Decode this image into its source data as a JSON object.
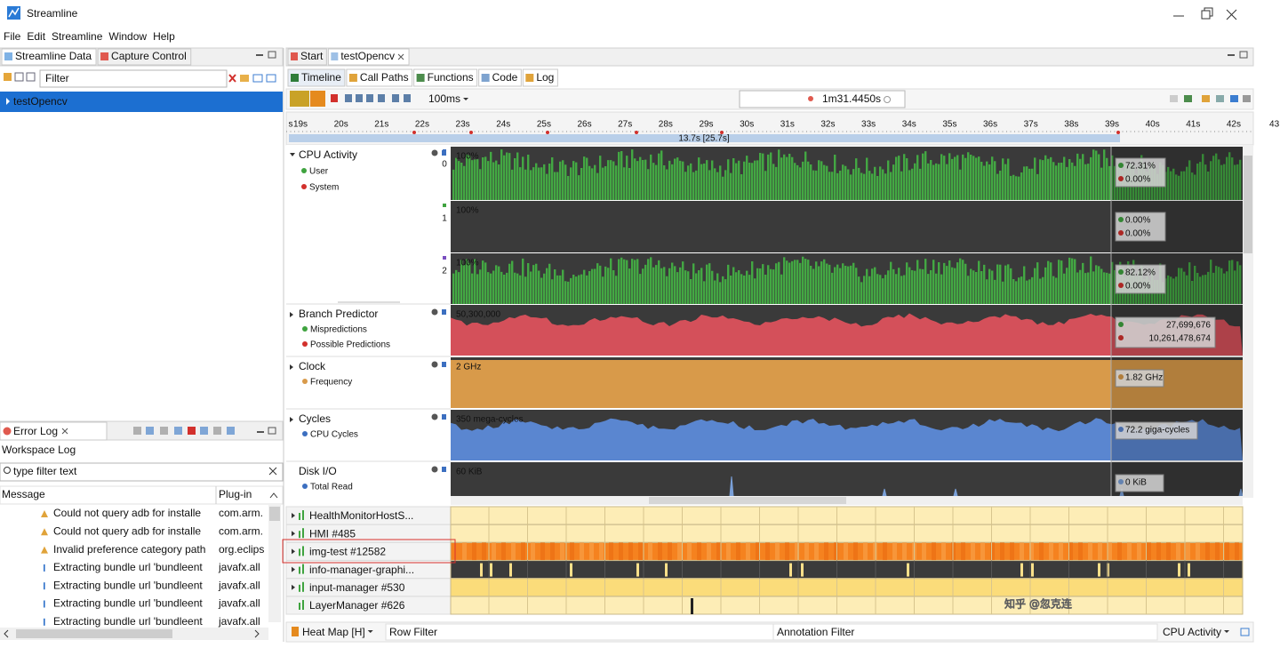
{
  "window": {
    "title": "Streamline"
  },
  "menu": [
    "File",
    "Edit",
    "Streamline",
    "Window",
    "Help"
  ],
  "left_tabs": [
    "Streamline Data",
    "Capture Control"
  ],
  "filter": "Filter",
  "captures": [
    "testOpencv"
  ],
  "error_log": {
    "tab": "Error Log",
    "title": "Workspace Log",
    "filter": "type filter text",
    "columns": [
      "Message",
      "Plug-in"
    ],
    "rows": [
      [
        "Could not query adb for installe",
        "com.arm."
      ],
      [
        "Could not query adb for installe",
        "com.arm."
      ],
      [
        "Invalid preference category path",
        "org.eclips"
      ],
      [
        "Extracting bundle url 'bundleent",
        "javafx.all"
      ],
      [
        "Extracting bundle url 'bundleent",
        "javafx.all"
      ],
      [
        "Extracting bundle url 'bundleent",
        "javafx.all"
      ],
      [
        "Extracting bundle url 'bundleent",
        "javafx.all"
      ]
    ]
  },
  "editor_tabs": [
    "Start",
    "testOpencv"
  ],
  "views": [
    "Timeline",
    "Call Paths",
    "Functions",
    "Code",
    "Log"
  ],
  "toolbar": {
    "zoom": "100ms",
    "time": "1m31.4450s"
  },
  "ruler": {
    "labels": [
      "s",
      "19s",
      "20s",
      "21s",
      "22s",
      "23s",
      "24s",
      "25s",
      "26s",
      "27s",
      "28s",
      "29s",
      "30s",
      "31s",
      "32s",
      "33s",
      "34s",
      "35s",
      "36s",
      "37s",
      "38s",
      "39s",
      "40s",
      "41s",
      "42s",
      "43"
    ],
    "selection": "13.7s [25.7s]"
  },
  "cpu": {
    "title": "CPU Activity",
    "series": [
      "User",
      "System"
    ],
    "cores": [
      {
        "label": "0",
        "scale": "100%",
        "readouts": [
          "72.31%",
          "0.00%"
        ]
      },
      {
        "label": "1",
        "scale": "100%",
        "readouts": [
          "0.00%",
          "0.00%"
        ]
      },
      {
        "label": "2",
        "scale": "100%",
        "readouts": [
          "82.12%",
          "0.00%"
        ]
      }
    ]
  },
  "counters": [
    {
      "title": "Branch Predictor",
      "series": [
        "Mispredictions",
        "Possible Predictions"
      ],
      "scale": "50,300,000",
      "readouts": [
        "27,699,676",
        "10,261,478,674"
      ],
      "color": "#d4505a"
    },
    {
      "title": "Clock",
      "series": [
        "Frequency"
      ],
      "scale": "2 GHz",
      "readouts": [
        "1.82 GHz"
      ],
      "color": "#d89a4a"
    },
    {
      "title": "Cycles",
      "series": [
        "CPU Cycles"
      ],
      "scale": "350 mega-cycles",
      "readouts": [
        "72.2 giga-cycles"
      ],
      "color": "#5a86d0"
    },
    {
      "title": "Disk I/O",
      "series": [
        "Total Read"
      ],
      "scale": "60 KiB",
      "readouts": [
        "0 KiB"
      ],
      "color": "#7aa0d8"
    }
  ],
  "threads": [
    "HealthMonitorHostS...",
    "HMI #485",
    "img-test #12582",
    "info-manager-graphi...",
    "input-manager #530",
    "LayerManager #626"
  ],
  "bottom": {
    "view": "Heat Map [H]",
    "row_filter": "Row Filter",
    "annotation_filter": "Annotation Filter",
    "source": "CPU Activity"
  },
  "watermark": "知乎 @忽克连"
}
